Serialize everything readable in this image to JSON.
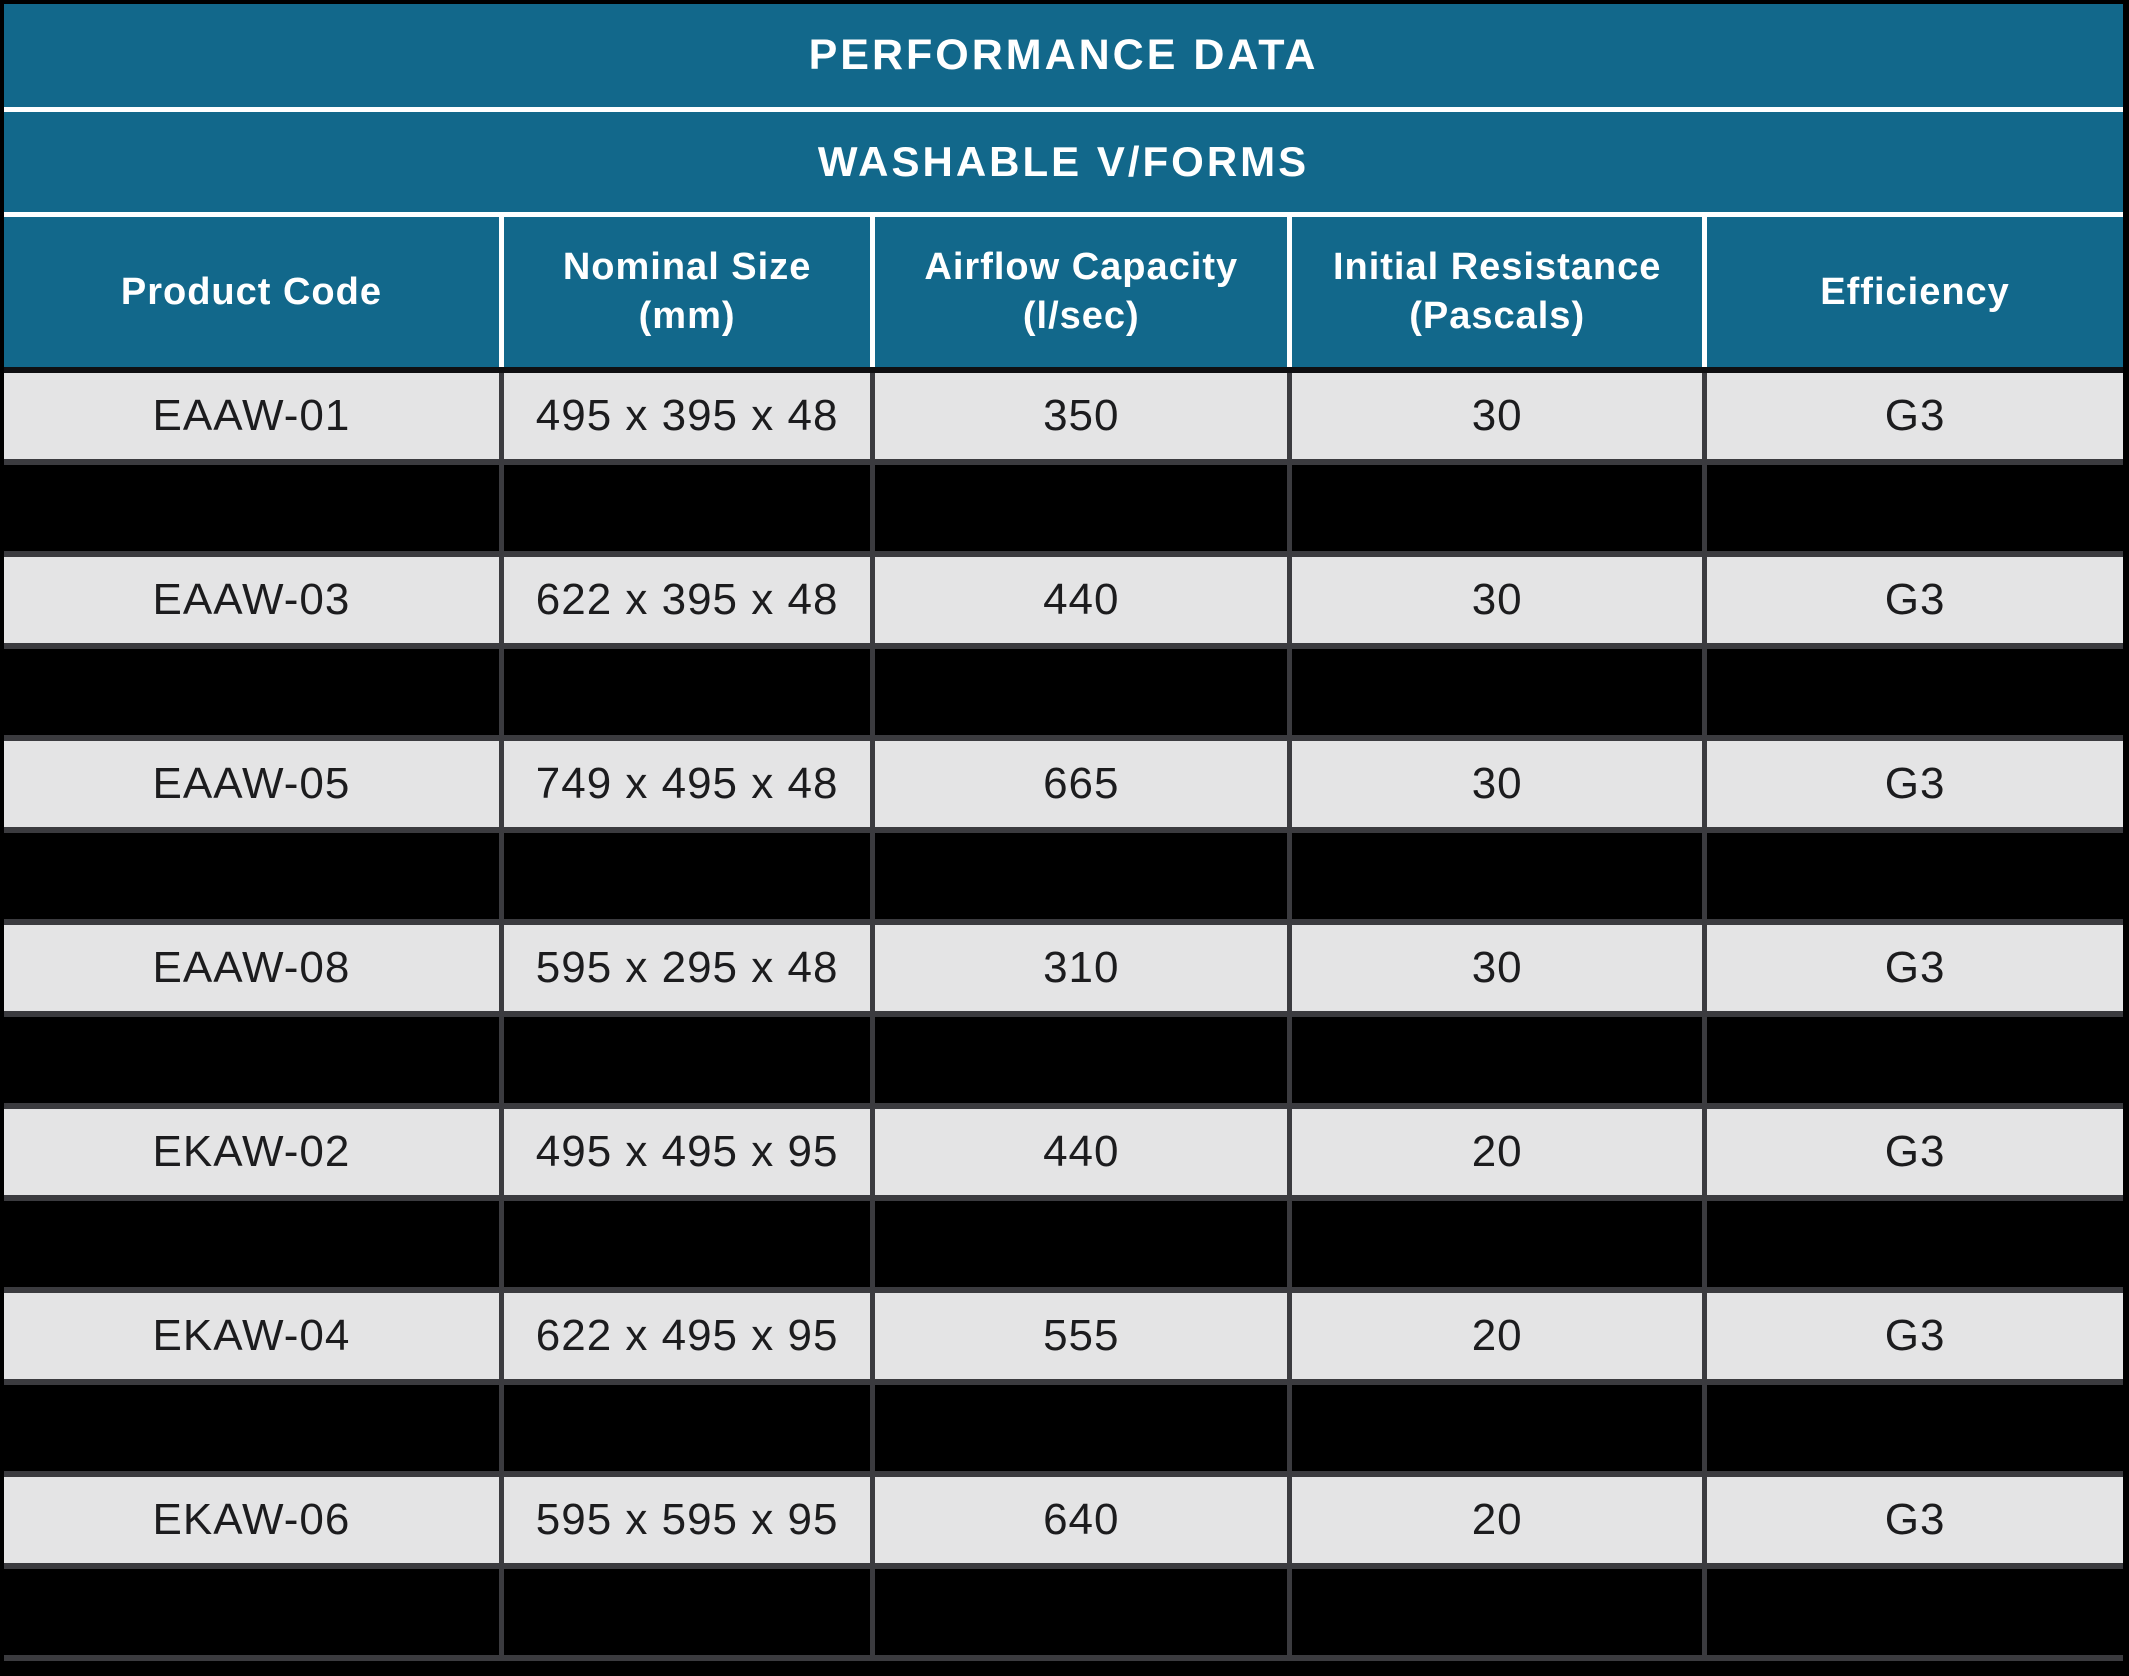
{
  "table": {
    "title": "PERFORMANCE DATA",
    "subtitle": "WASHABLE V/FORMS",
    "columns": [
      "Product Code",
      "Nominal Size\n(mm)",
      "Airflow Capacity\n(l/sec)",
      "Initial Resistance\n(Pascals)",
      "Efficiency"
    ],
    "rows": [
      {
        "type": "data",
        "cells": [
          "EAAW-01",
          "495 x 395 x 48",
          "350",
          "30",
          "G3"
        ]
      },
      {
        "type": "redacted",
        "cells": [
          "",
          "",
          "",
          "",
          ""
        ]
      },
      {
        "type": "data",
        "cells": [
          "EAAW-03",
          "622 x 395 x 48",
          "440",
          "30",
          "G3"
        ]
      },
      {
        "type": "redacted",
        "cells": [
          "",
          "",
          "",
          "",
          ""
        ]
      },
      {
        "type": "data",
        "cells": [
          "EAAW-05",
          "749 x 495 x 48",
          "665",
          "30",
          "G3"
        ]
      },
      {
        "type": "redacted",
        "cells": [
          "",
          "",
          "",
          "",
          ""
        ]
      },
      {
        "type": "data",
        "cells": [
          "EAAW-08",
          "595 x 295 x 48",
          "310",
          "30",
          "G3"
        ]
      },
      {
        "type": "redacted",
        "cells": [
          "",
          "",
          "",
          "",
          ""
        ]
      },
      {
        "type": "data",
        "cells": [
          "EKAW-02",
          "495 x 495 x 95",
          "440",
          "20",
          "G3"
        ]
      },
      {
        "type": "redacted",
        "cells": [
          "",
          "",
          "",
          "",
          ""
        ]
      },
      {
        "type": "data",
        "cells": [
          "EKAW-04",
          "622 x 495 x 95",
          "555",
          "20",
          "G3"
        ]
      },
      {
        "type": "redacted",
        "cells": [
          "",
          "",
          "",
          "",
          ""
        ]
      },
      {
        "type": "data",
        "cells": [
          "EKAW-06",
          "595 x 595 x 95",
          "640",
          "20",
          "G3"
        ]
      },
      {
        "type": "redacted",
        "cells": [
          "",
          "",
          "",
          "",
          ""
        ]
      }
    ],
    "colors": {
      "header_teal": "#12688b",
      "row_light": "#e4e4e5",
      "row_redacted": "#000000",
      "grid_line": "#3b3b3f",
      "header_divider": "#ffffff"
    }
  }
}
